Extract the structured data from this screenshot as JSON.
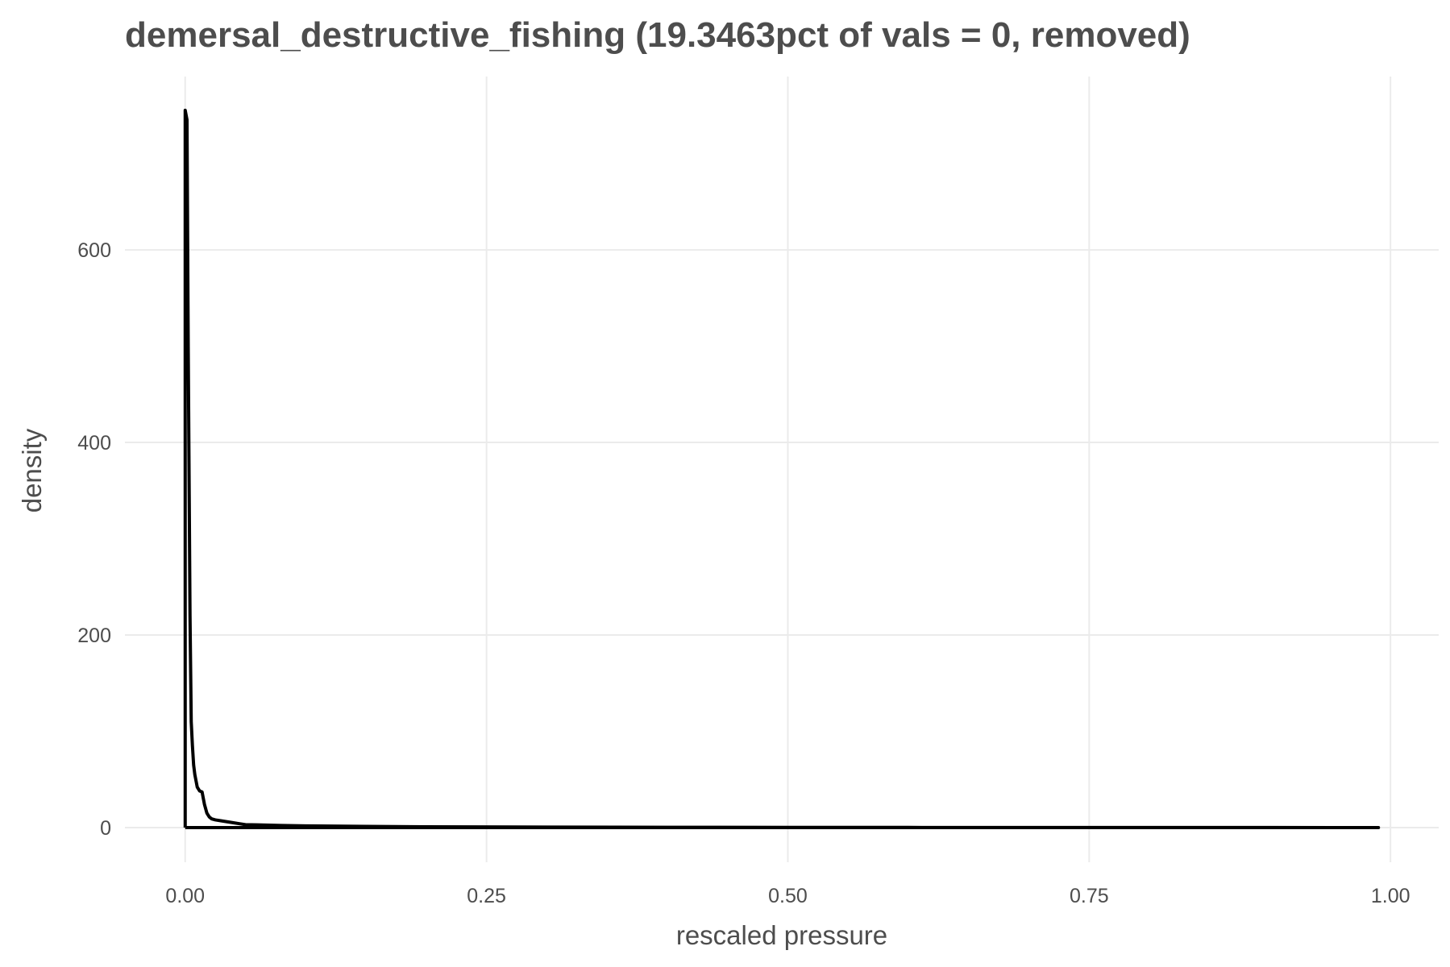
{
  "chart_data": {
    "type": "line",
    "title": "demersal_destructive_fishing (19.3463pct of vals = 0, removed)",
    "xlabel": "rescaled pressure",
    "ylabel": "density",
    "xlim": [
      -0.05,
      1.04
    ],
    "ylim": [
      -36,
      780
    ],
    "x_ticks": [
      0.0,
      0.25,
      0.5,
      0.75,
      1.0
    ],
    "x_tick_labels": [
      "0.00",
      "0.25",
      "0.50",
      "0.75",
      "1.00"
    ],
    "y_ticks": [
      0,
      200,
      400,
      600
    ],
    "y_tick_labels": [
      "0",
      "200",
      "400",
      "600"
    ],
    "grid": true,
    "legend": "none",
    "series": [
      {
        "x": [
          0.0,
          0.0,
          0.0015,
          0.0025,
          0.004,
          0.005,
          0.006,
          0.007,
          0.008,
          0.01,
          0.012,
          0.014,
          0.016,
          0.018,
          0.02,
          0.022,
          0.025,
          0.03,
          0.04,
          0.045,
          0.05,
          0.06,
          0.08,
          0.1,
          0.15,
          0.2,
          0.3,
          0.4,
          0.5,
          0.6,
          0.7,
          0.8,
          0.9,
          0.99,
          0.99,
          0.0
        ],
        "y": [
          0,
          745,
          735,
          500,
          220,
          110,
          85,
          65,
          55,
          42,
          38,
          37,
          24,
          15,
          11,
          9,
          8,
          7,
          5,
          4,
          3,
          2.8,
          2.2,
          1.8,
          1.2,
          0.8,
          0.5,
          0.3,
          0.2,
          0.15,
          0.1,
          0.08,
          0.05,
          0.03,
          0,
          0
        ]
      }
    ]
  }
}
